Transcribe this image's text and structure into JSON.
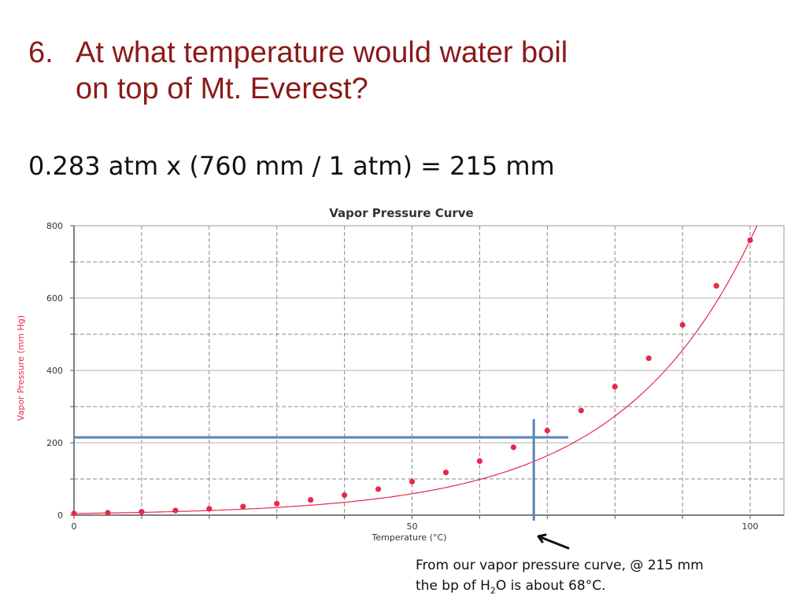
{
  "question": {
    "number": "6.",
    "line1": "At what temperature would water boil",
    "line2": "on top of Mt. Everest?"
  },
  "calculation": "0.283 atm x (760 mm / 1 atm) = 215 mm",
  "caption": {
    "line1": "From our vapor pressure curve, @ 215 mm",
    "line2_pre": "the bp of H",
    "line2_sub": "2",
    "line2_post": "O is about 68°C."
  },
  "colors": {
    "title": "#8b1a1a",
    "curve": "#e8284a",
    "ylabel": "#e8284a",
    "guide": "#5a84b8"
  },
  "chart_data": {
    "type": "scatter",
    "title": "Vapor Pressure Curve",
    "xlabel": "Temperature (°C)",
    "ylabel": "Vapor Pressure (mm Hg)",
    "xlim": [
      0,
      105
    ],
    "ylim": [
      0,
      800
    ],
    "xticks": [
      0,
      50,
      100
    ],
    "yticks": [
      0,
      200,
      400,
      600,
      800
    ],
    "grid": true,
    "x": [
      0,
      5,
      10,
      15,
      20,
      25,
      30,
      35,
      40,
      45,
      50,
      55,
      60,
      65,
      70,
      75,
      80,
      85,
      90,
      95,
      100
    ],
    "y": [
      4.6,
      6.5,
      9.2,
      12.8,
      17.5,
      23.8,
      31.8,
      42.2,
      55.3,
      71.9,
      92.5,
      118.0,
      149.4,
      187.5,
      233.7,
      289.1,
      355.1,
      433.6,
      525.8,
      633.9,
      760.0
    ],
    "guide": {
      "x": 68,
      "y": 215
    }
  }
}
